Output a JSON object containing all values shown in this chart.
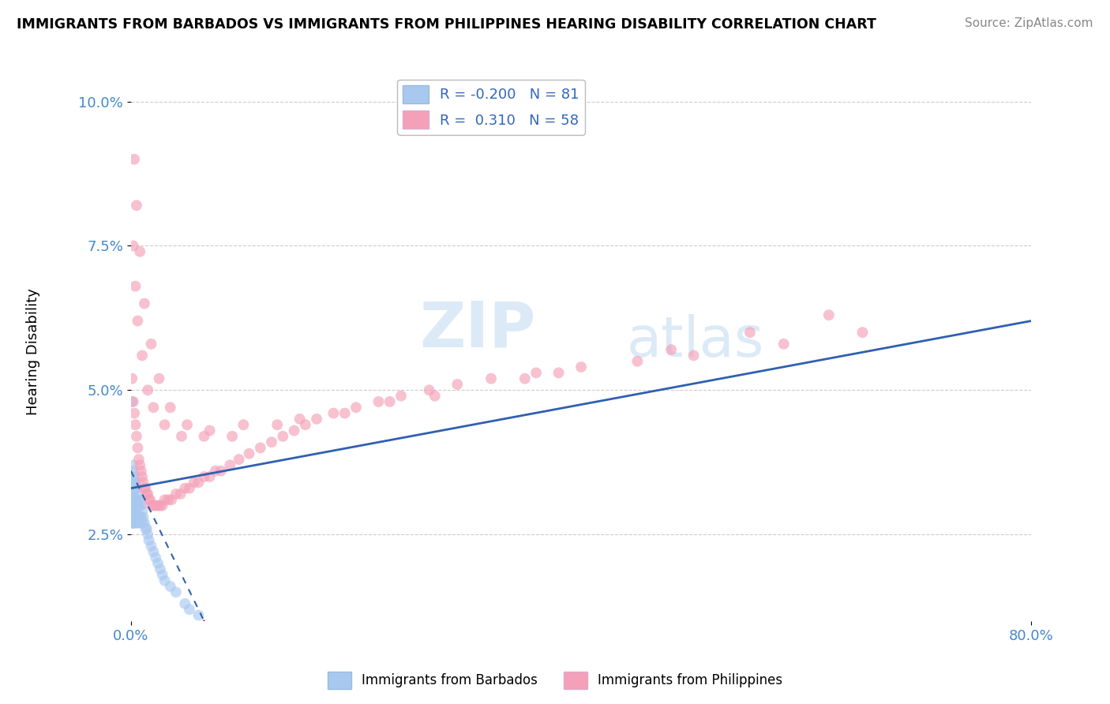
{
  "title": "IMMIGRANTS FROM BARBADOS VS IMMIGRANTS FROM PHILIPPINES HEARING DISABILITY CORRELATION CHART",
  "source": "Source: ZipAtlas.com",
  "ylabel": "Hearing Disability",
  "legend_label1": "Immigrants from Barbados",
  "legend_label2": "Immigrants from Philippines",
  "xlim": [
    0.0,
    0.8
  ],
  "ylim": [
    0.01,
    0.107
  ],
  "ytick_vals": [
    0.025,
    0.05,
    0.075,
    0.1
  ],
  "ytick_labels": [
    "2.5%",
    "5.0%",
    "7.5%",
    "10.0%"
  ],
  "barbados_R": -0.2,
  "barbados_N": 81,
  "philippines_R": 0.31,
  "philippines_N": 58,
  "barbados_color": "#a8c8f0",
  "philippines_color": "#f4a0b8",
  "barbados_line_color": "#3060b0",
  "philippines_line_color": "#d04070",
  "watermark_zip": "ZIP",
  "watermark_atlas": "atlas",
  "grid_color": "#cccccc",
  "barbados_x": [
    0.001,
    0.001,
    0.001,
    0.001,
    0.001,
    0.001,
    0.001,
    0.001,
    0.001,
    0.001,
    0.001,
    0.001,
    0.002,
    0.002,
    0.002,
    0.002,
    0.002,
    0.002,
    0.002,
    0.002,
    0.002,
    0.002,
    0.002,
    0.002,
    0.002,
    0.003,
    0.003,
    0.003,
    0.003,
    0.003,
    0.003,
    0.003,
    0.003,
    0.004,
    0.004,
    0.004,
    0.004,
    0.004,
    0.004,
    0.004,
    0.004,
    0.005,
    0.005,
    0.005,
    0.005,
    0.005,
    0.005,
    0.006,
    0.006,
    0.006,
    0.006,
    0.006,
    0.007,
    0.007,
    0.007,
    0.007,
    0.008,
    0.008,
    0.009,
    0.009,
    0.01,
    0.01,
    0.011,
    0.012,
    0.013,
    0.014,
    0.015,
    0.016,
    0.018,
    0.02,
    0.022,
    0.024,
    0.026,
    0.028,
    0.03,
    0.035,
    0.04,
    0.048,
    0.052,
    0.06,
    0.001
  ],
  "barbados_y": [
    0.035,
    0.033,
    0.032,
    0.031,
    0.031,
    0.03,
    0.029,
    0.029,
    0.028,
    0.028,
    0.027,
    0.027,
    0.037,
    0.036,
    0.034,
    0.033,
    0.032,
    0.031,
    0.031,
    0.03,
    0.029,
    0.028,
    0.028,
    0.027,
    0.027,
    0.035,
    0.034,
    0.033,
    0.031,
    0.03,
    0.029,
    0.028,
    0.027,
    0.034,
    0.033,
    0.031,
    0.03,
    0.029,
    0.028,
    0.028,
    0.027,
    0.033,
    0.031,
    0.03,
    0.029,
    0.028,
    0.027,
    0.032,
    0.031,
    0.03,
    0.028,
    0.027,
    0.031,
    0.03,
    0.028,
    0.027,
    0.03,
    0.028,
    0.03,
    0.028,
    0.029,
    0.027,
    0.028,
    0.027,
    0.026,
    0.026,
    0.025,
    0.024,
    0.023,
    0.022,
    0.021,
    0.02,
    0.019,
    0.018,
    0.017,
    0.016,
    0.015,
    0.013,
    0.012,
    0.011,
    0.048
  ],
  "philippines_x": [
    0.001,
    0.002,
    0.003,
    0.004,
    0.005,
    0.006,
    0.007,
    0.008,
    0.009,
    0.01,
    0.011,
    0.012,
    0.013,
    0.014,
    0.015,
    0.016,
    0.017,
    0.018,
    0.02,
    0.022,
    0.024,
    0.026,
    0.028,
    0.03,
    0.033,
    0.036,
    0.04,
    0.044,
    0.048,
    0.052,
    0.056,
    0.06,
    0.065,
    0.07,
    0.075,
    0.08,
    0.088,
    0.096,
    0.105,
    0.115,
    0.125,
    0.135,
    0.145,
    0.155,
    0.165,
    0.18,
    0.2,
    0.22,
    0.24,
    0.265,
    0.29,
    0.32,
    0.36,
    0.4,
    0.45,
    0.5,
    0.58,
    0.65
  ],
  "philippines_y": [
    0.052,
    0.048,
    0.046,
    0.044,
    0.042,
    0.04,
    0.038,
    0.037,
    0.036,
    0.035,
    0.034,
    0.033,
    0.033,
    0.032,
    0.032,
    0.031,
    0.031,
    0.03,
    0.03,
    0.03,
    0.03,
    0.03,
    0.03,
    0.031,
    0.031,
    0.031,
    0.032,
    0.032,
    0.033,
    0.033,
    0.034,
    0.034,
    0.035,
    0.035,
    0.036,
    0.036,
    0.037,
    0.038,
    0.039,
    0.04,
    0.041,
    0.042,
    0.043,
    0.044,
    0.045,
    0.046,
    0.047,
    0.048,
    0.049,
    0.05,
    0.051,
    0.052,
    0.053,
    0.054,
    0.055,
    0.056,
    0.058,
    0.06
  ],
  "philippines_extra_x": [
    0.003,
    0.005,
    0.008,
    0.012,
    0.018,
    0.025,
    0.035,
    0.05,
    0.07,
    0.1,
    0.15,
    0.23,
    0.35,
    0.48,
    0.62,
    0.002,
    0.004,
    0.006,
    0.01,
    0.015,
    0.02,
    0.03,
    0.045,
    0.065,
    0.09,
    0.13,
    0.19,
    0.27,
    0.38,
    0.55
  ],
  "philippines_extra_y": [
    0.09,
    0.082,
    0.074,
    0.065,
    0.058,
    0.052,
    0.047,
    0.044,
    0.043,
    0.044,
    0.045,
    0.048,
    0.052,
    0.057,
    0.063,
    0.075,
    0.068,
    0.062,
    0.056,
    0.05,
    0.047,
    0.044,
    0.042,
    0.042,
    0.042,
    0.044,
    0.046,
    0.049,
    0.053,
    0.06
  ]
}
